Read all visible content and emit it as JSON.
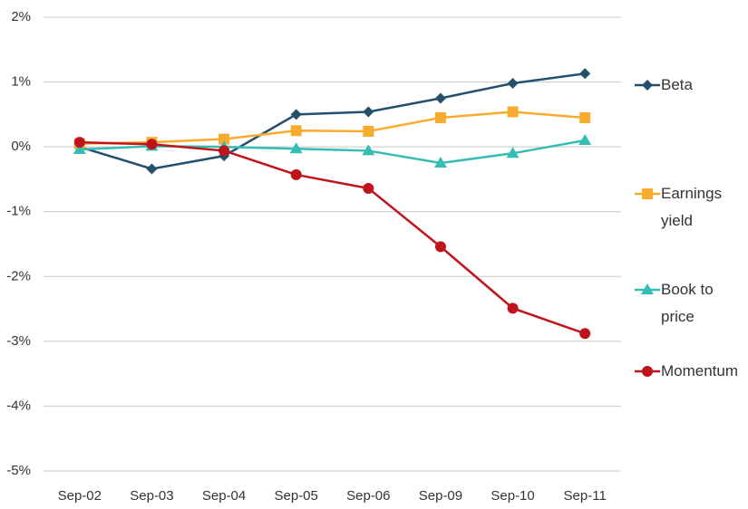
{
  "chart_data": {
    "type": "line",
    "categories": [
      "Sep-02",
      "Sep-03",
      "Sep-04",
      "Sep-05",
      "Sep-06",
      "Sep-09",
      "Sep-10",
      "Sep-11"
    ],
    "series": [
      {
        "name": "Beta",
        "color": "#24506e",
        "marker": "diamond",
        "values": [
          0,
          -0.34,
          -0.14,
          0.5,
          0.54,
          0.75,
          0.98,
          1.13
        ]
      },
      {
        "name": "Earnings yield",
        "color": "#f7ac2e",
        "marker": "square",
        "values": [
          0.05,
          0.07,
          0.12,
          0.25,
          0.24,
          0.45,
          0.54,
          0.45
        ]
      },
      {
        "name": "Book to price",
        "color": "#35bdb5",
        "marker": "triangle",
        "values": [
          -0.04,
          0.01,
          0,
          -0.03,
          -0.06,
          -0.25,
          -0.1,
          0.1
        ]
      },
      {
        "name": "Momentum",
        "color": "#c0141c",
        "marker": "circle",
        "values": [
          0.07,
          0.04,
          -0.06,
          -0.43,
          -0.64,
          -1.54,
          -2.49,
          -2.88
        ]
      }
    ],
    "ylim": [
      -5,
      2
    ],
    "yticks": [
      {
        "value": -5,
        "label": "-5%"
      },
      {
        "value": -4,
        "label": "-4%"
      },
      {
        "value": -3,
        "label": "-3%"
      },
      {
        "value": -2,
        "label": "-2%"
      },
      {
        "value": -1,
        "label": "-1%"
      },
      {
        "value": 0,
        "label": "0%"
      },
      {
        "value": 1,
        "label": "1%"
      },
      {
        "value": 2,
        "label": "2%"
      }
    ],
    "grid": true,
    "legend": "right"
  }
}
